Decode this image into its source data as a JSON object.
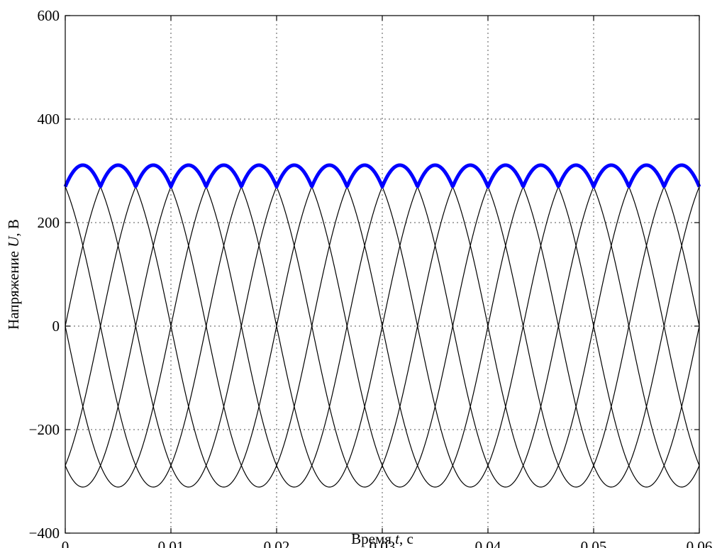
{
  "chart_data": {
    "type": "line",
    "xlabel": {
      "prefix": "Время ",
      "var": "t",
      "suffix": ", с"
    },
    "ylabel": {
      "prefix": "Напряжение ",
      "var": "U",
      "suffix": ", В"
    },
    "xlim": [
      0,
      0.06
    ],
    "ylim": [
      -400,
      600
    ],
    "x_ticks": [
      0,
      0.01,
      0.02,
      0.03,
      0.04,
      0.05,
      0.06
    ],
    "x_tick_labels": [
      "0",
      "0,01",
      "0,02",
      "0,03",
      "0,04",
      "0,05",
      "0,06"
    ],
    "y_ticks": [
      -400,
      -200,
      0,
      200,
      400,
      600
    ],
    "y_tick_labels": [
      "−400",
      "−200",
      "0",
      "200",
      "400",
      "600"
    ],
    "grid": true,
    "series": [
      {
        "amplitude": 311,
        "frequency_hz": 50,
        "phase_deg": 0,
        "color": "#000000"
      },
      {
        "amplitude": 311,
        "frequency_hz": 50,
        "phase_deg": -120,
        "color": "#000000"
      },
      {
        "amplitude": 311,
        "frequency_hz": 50,
        "phase_deg": 120,
        "color": "#000000"
      },
      {
        "amplitude": 311,
        "frequency_hz": 50,
        "phase_deg": 60,
        "color": "#000000"
      },
      {
        "amplitude": 311,
        "frequency_hz": 50,
        "phase_deg": 180,
        "color": "#000000"
      },
      {
        "amplitude": 311,
        "frequency_hz": 50,
        "phase_deg": -60,
        "color": "#000000"
      },
      {
        "envelope": "max",
        "color": "#0000ff"
      }
    ]
  }
}
